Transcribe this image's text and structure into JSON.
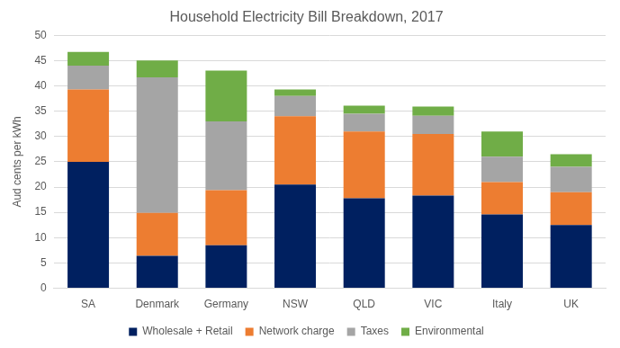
{
  "chart_data": {
    "type": "bar",
    "title": "Household Electricity Bill Breakdown, 2017",
    "y_label": "Aud cents per kWh",
    "categories": [
      "SA",
      "Denmark",
      "Germany",
      "NSW",
      "QLD",
      "VIC",
      "Italy",
      "UK"
    ],
    "series": [
      {
        "name": "Wholesale + Retail",
        "color": "#002060",
        "values": [
          25,
          6.4,
          8.5,
          20.5,
          17.8,
          18.3,
          14.6,
          12.5
        ]
      },
      {
        "name": "Network charge",
        "color": "#ED7D31",
        "values": [
          14.3,
          8.5,
          10.9,
          13.5,
          13.2,
          12.2,
          6.4,
          6.5
        ]
      },
      {
        "name": "Taxes",
        "color": "#A5A5A5",
        "values": [
          4.7,
          26.8,
          13.6,
          4,
          3.5,
          3.6,
          5,
          5
        ]
      },
      {
        "name": "Environmental",
        "color": "#70AD47",
        "values": [
          2.7,
          3.3,
          10,
          1.3,
          1.6,
          1.8,
          5,
          2.5
        ]
      }
    ],
    "ylim": [
      0,
      50
    ],
    "yticks": [
      0,
      5,
      10,
      15,
      20,
      25,
      30,
      35,
      40,
      45,
      50
    ],
    "stacked": true,
    "grid": true,
    "legend": "bottom"
  }
}
